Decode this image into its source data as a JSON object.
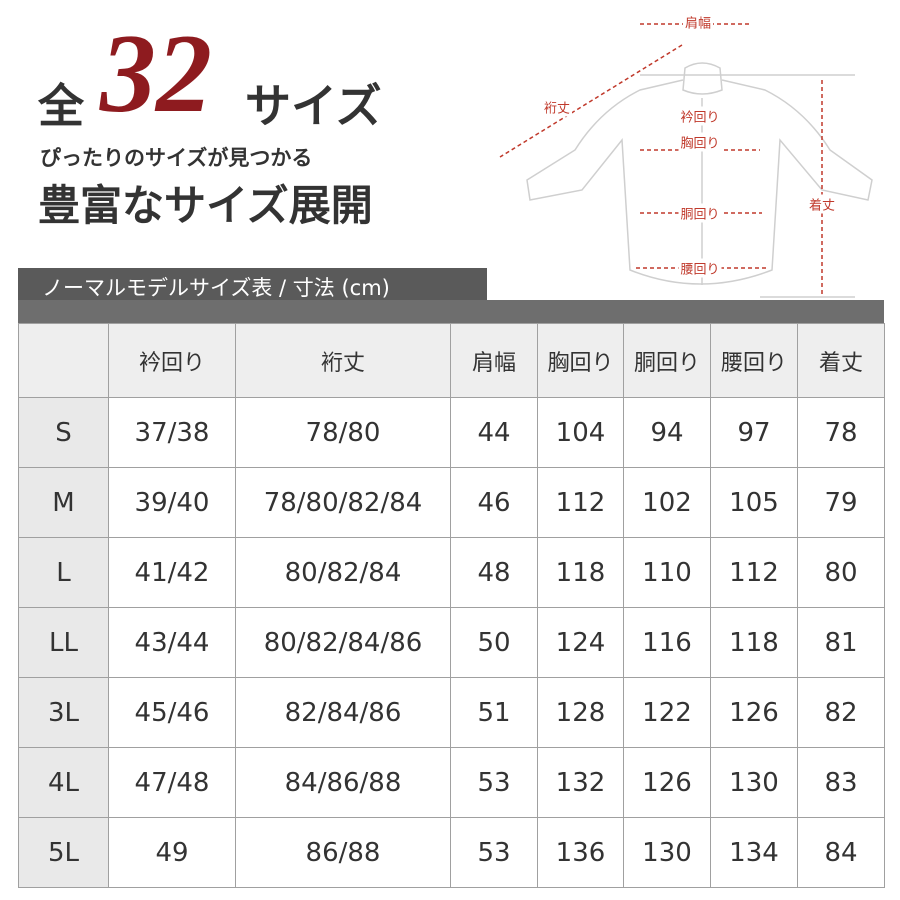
{
  "header": {
    "prefix": "全",
    "number": "32",
    "suffix": "サイズ",
    "tagline": "ぴったりのサイズが見つかる",
    "headline": "豊富なサイズ展開"
  },
  "diagram": {
    "labels": [
      "肩幅",
      "裄丈",
      "衿回り",
      "胸回り",
      "胴回り",
      "腰回り",
      "着丈"
    ]
  },
  "table": {
    "title": "ノーマルモデルサイズ表 / 寸法 (cm)",
    "columns": [
      "衿回り",
      "裄丈",
      "肩幅",
      "胸回り",
      "胴回り",
      "腰回り",
      "着丈"
    ],
    "rows": [
      [
        "S",
        "37/38",
        "78/80",
        "44",
        "104",
        "94",
        "97",
        "78"
      ],
      [
        "M",
        "39/40",
        "78/80/82/84",
        "46",
        "112",
        "102",
        "105",
        "79"
      ],
      [
        "L",
        "41/42",
        "80/82/84",
        "48",
        "118",
        "110",
        "112",
        "80"
      ],
      [
        "LL",
        "43/44",
        "80/82/84/86",
        "50",
        "124",
        "116",
        "118",
        "81"
      ],
      [
        "3L",
        "45/46",
        "82/84/86",
        "51",
        "128",
        "122",
        "126",
        "82"
      ],
      [
        "4L",
        "47/48",
        "84/86/88",
        "53",
        "132",
        "126",
        "130",
        "83"
      ],
      [
        "5L",
        "49",
        "86/88",
        "53",
        "136",
        "130",
        "134",
        "84"
      ]
    ]
  }
}
